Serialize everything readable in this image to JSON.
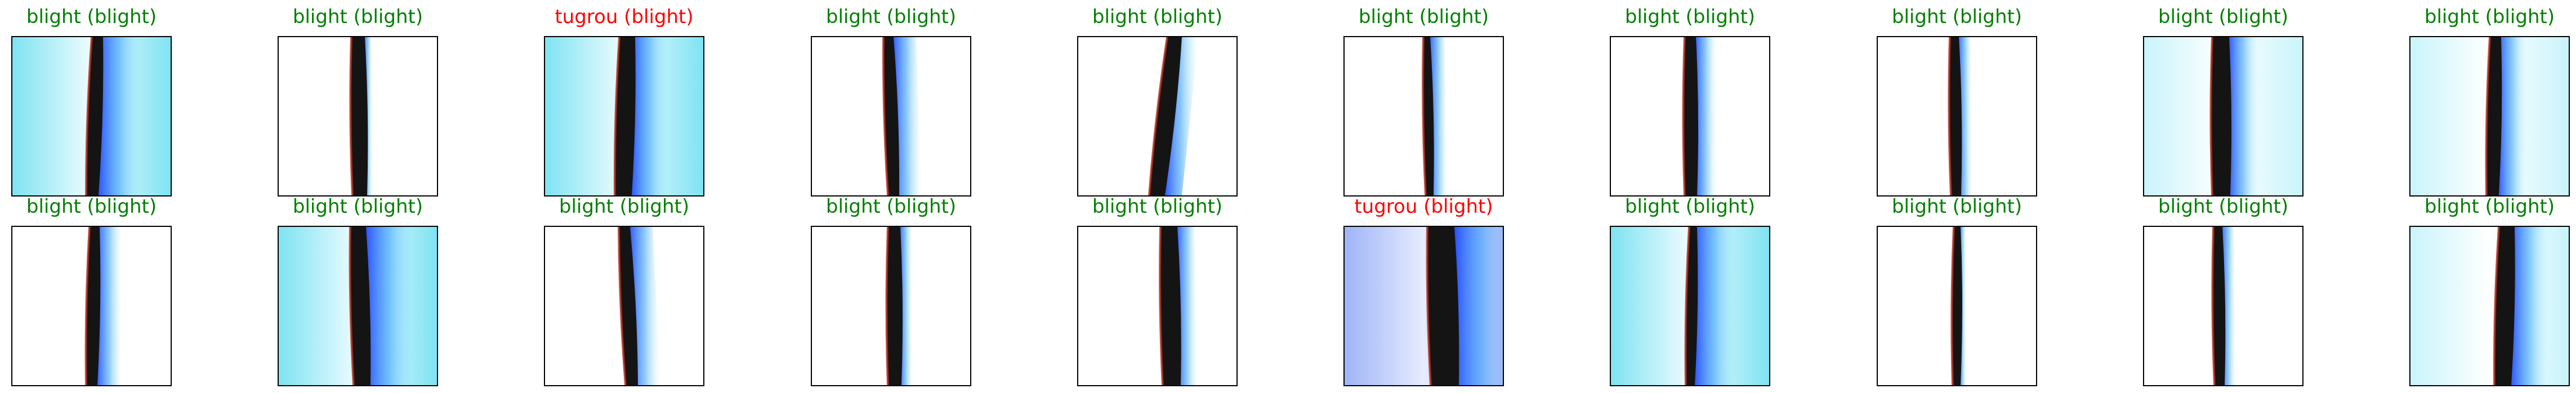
{
  "colors": {
    "correct": "#008000",
    "incorrect": "#ff0000"
  },
  "rows": [
    {
      "cells": [
        {
          "title": "blight (blight)",
          "correct": true
        },
        {
          "title": "blight (blight)",
          "correct": true
        },
        {
          "title": "tugrou (blight)",
          "correct": false
        },
        {
          "title": "blight (blight)",
          "correct": true
        },
        {
          "title": "blight (blight)",
          "correct": true
        },
        {
          "title": "blight (blight)",
          "correct": true
        },
        {
          "title": "blight (blight)",
          "correct": true
        },
        {
          "title": "blight (blight)",
          "correct": true
        },
        {
          "title": "blight (blight)",
          "correct": true
        },
        {
          "title": "blight (blight)",
          "correct": true
        }
      ]
    },
    {
      "cells": [
        {
          "title": "blight (blight)",
          "correct": true
        },
        {
          "title": "blight (blight)",
          "correct": true
        },
        {
          "title": "blight (blight)",
          "correct": true
        },
        {
          "title": "blight (blight)",
          "correct": true
        },
        {
          "title": "blight (blight)",
          "correct": true
        },
        {
          "title": "tugrou (blight)",
          "correct": false
        },
        {
          "title": "blight (blight)",
          "correct": true
        },
        {
          "title": "blight (blight)",
          "correct": true
        },
        {
          "title": "blight (blight)",
          "correct": true
        },
        {
          "title": "blight (blight)",
          "correct": true
        }
      ]
    }
  ]
}
